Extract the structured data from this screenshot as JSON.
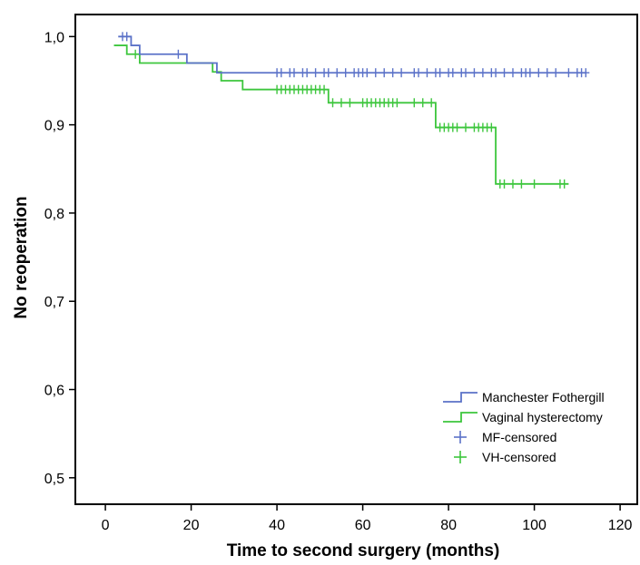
{
  "chart_data": {
    "type": "line",
    "subtype": "kaplan-meier step",
    "xlabel": "Time to second surgery (months)",
    "ylabel": "No reoperation",
    "xlim": [
      -7,
      124
    ],
    "ylim": [
      0.47,
      1.025
    ],
    "x_ticks": [
      0,
      20,
      40,
      60,
      80,
      100,
      120
    ],
    "x_tick_labels": [
      "0",
      "20",
      "40",
      "60",
      "80",
      "100",
      "120"
    ],
    "y_ticks": [
      0.5,
      0.6,
      0.7,
      0.8,
      0.9,
      1.0
    ],
    "y_tick_labels": [
      "0,5",
      "0,6",
      "0,7",
      "0,8",
      "0,9",
      "1,0"
    ],
    "grid": false,
    "legend_position": "bottom-right",
    "series": [
      {
        "name": "Manchester Fothergill",
        "color": "#5b72c8",
        "steps": [
          [
            3,
            1.0
          ],
          [
            6,
            0.99
          ],
          [
            8,
            0.98
          ],
          [
            19,
            0.97
          ],
          [
            26,
            0.959
          ],
          [
            112,
            0.959
          ]
        ],
        "censored_name": "MF-censored",
        "censored": [
          4,
          5,
          17,
          40,
          41,
          43,
          44,
          46,
          47,
          49,
          51,
          52,
          54,
          56,
          58,
          59,
          60,
          61,
          63,
          65,
          67,
          69,
          72,
          73,
          75,
          77,
          78,
          80,
          81,
          83,
          84,
          86,
          88,
          90,
          91,
          93,
          95,
          97,
          98,
          99,
          101,
          103,
          105,
          108,
          110,
          111,
          112
        ]
      },
      {
        "name": "Vaginal hysterectomy",
        "color": "#3dc63d",
        "steps": [
          [
            2,
            0.99
          ],
          [
            5,
            0.98
          ],
          [
            8,
            0.97
          ],
          [
            25,
            0.96
          ],
          [
            27,
            0.95
          ],
          [
            32,
            0.94
          ],
          [
            52,
            0.925
          ],
          [
            77,
            0.897
          ],
          [
            91,
            0.833
          ],
          [
            108,
            0.833
          ]
        ],
        "censored_name": "VH-censored",
        "censored": [
          7,
          40,
          41,
          42,
          43,
          44,
          45,
          46,
          47,
          48,
          49,
          50,
          51,
          53,
          55,
          57,
          60,
          61,
          62,
          63,
          64,
          65,
          66,
          67,
          68,
          72,
          74,
          76,
          78,
          79,
          80,
          81,
          82,
          84,
          86,
          87,
          88,
          89,
          90,
          92,
          93,
          95,
          97,
          100,
          106,
          107
        ]
      }
    ]
  }
}
